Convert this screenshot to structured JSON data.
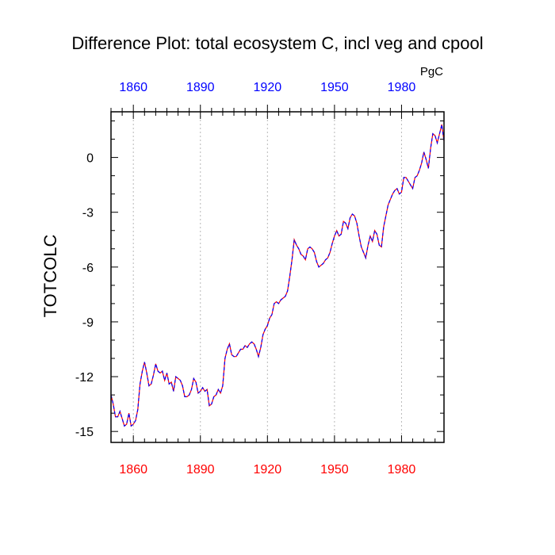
{
  "chart_data": {
    "type": "line",
    "title": "Difference Plot: total ecosystem C, incl veg and cpool",
    "units": "PgC",
    "ylabel": "TOTCOLC",
    "xlabel": "",
    "xlim": [
      1850,
      1999
    ],
    "ylim": [
      -15.6,
      2.5
    ],
    "x_ticks": [
      1860,
      1890,
      1920,
      1950,
      1980
    ],
    "y_ticks": [
      0,
      -3,
      -6,
      -9,
      -12,
      -15
    ],
    "grid": "vertical dotted lines at major x ticks",
    "top_tick_color": "#0000ff",
    "bottom_tick_color": "#ff0000",
    "series": [
      {
        "name": "",
        "color_a": "#ff0000",
        "color_b": "#0000ff",
        "style": "dashed",
        "x": [
          1850,
          1851,
          1852,
          1853,
          1854,
          1855,
          1856,
          1857,
          1858,
          1859,
          1860,
          1861,
          1862,
          1863,
          1864,
          1865,
          1866,
          1867,
          1868,
          1869,
          1870,
          1871,
          1872,
          1873,
          1874,
          1875,
          1876,
          1877,
          1878,
          1879,
          1880,
          1881,
          1882,
          1883,
          1884,
          1885,
          1886,
          1887,
          1888,
          1889,
          1890,
          1891,
          1892,
          1893,
          1894,
          1895,
          1896,
          1897,
          1898,
          1899,
          1900,
          1901,
          1902,
          1903,
          1904,
          1905,
          1906,
          1907,
          1908,
          1909,
          1910,
          1911,
          1912,
          1913,
          1914,
          1915,
          1916,
          1917,
          1918,
          1919,
          1920,
          1921,
          1922,
          1923,
          1924,
          1925,
          1926,
          1927,
          1928,
          1929,
          1930,
          1931,
          1932,
          1933,
          1934,
          1935,
          1936,
          1937,
          1938,
          1939,
          1940,
          1941,
          1942,
          1943,
          1944,
          1945,
          1946,
          1947,
          1948,
          1949,
          1950,
          1951,
          1952,
          1953,
          1954,
          1955,
          1956,
          1957,
          1958,
          1959,
          1960,
          1961,
          1962,
          1963,
          1964,
          1965,
          1966,
          1967,
          1968,
          1969,
          1970,
          1971,
          1972,
          1973,
          1974,
          1975,
          1976,
          1977,
          1978,
          1979,
          1980,
          1981,
          1982,
          1983,
          1984,
          1985,
          1986,
          1987,
          1988,
          1989,
          1990,
          1991,
          1992,
          1993,
          1994,
          1995,
          1996,
          1997,
          1998,
          1999
        ],
        "y": [
          -13.0,
          -13.5,
          -14.2,
          -14.2,
          -13.9,
          -14.3,
          -14.7,
          -14.6,
          -14.0,
          -14.7,
          -14.6,
          -14.4,
          -13.8,
          -12.4,
          -11.7,
          -11.2,
          -11.8,
          -12.5,
          -12.4,
          -11.9,
          -11.3,
          -11.7,
          -11.8,
          -11.7,
          -12.2,
          -11.8,
          -12.4,
          -12.3,
          -12.8,
          -12.0,
          -12.1,
          -12.2,
          -12.5,
          -13.1,
          -13.1,
          -13.0,
          -12.7,
          -12.1,
          -12.3,
          -12.9,
          -12.8,
          -12.6,
          -12.8,
          -12.7,
          -13.6,
          -13.5,
          -13.1,
          -13.0,
          -12.7,
          -12.9,
          -12.5,
          -11.0,
          -10.5,
          -10.2,
          -10.8,
          -10.9,
          -10.9,
          -10.7,
          -10.5,
          -10.5,
          -10.3,
          -10.4,
          -10.2,
          -10.1,
          -10.2,
          -10.5,
          -10.9,
          -10.4,
          -9.7,
          -9.4,
          -9.2,
          -8.8,
          -8.6,
          -8.0,
          -7.9,
          -8.0,
          -7.8,
          -7.7,
          -7.6,
          -7.3,
          -6.5,
          -5.6,
          -4.5,
          -4.8,
          -5.0,
          -5.3,
          -5.4,
          -5.6,
          -5.0,
          -4.9,
          -5.0,
          -5.2,
          -5.7,
          -6.0,
          -5.9,
          -5.8,
          -5.6,
          -5.5,
          -5.2,
          -4.7,
          -4.3,
          -4.0,
          -4.3,
          -4.2,
          -3.5,
          -3.6,
          -3.9,
          -3.3,
          -3.1,
          -3.2,
          -3.6,
          -4.3,
          -4.9,
          -5.2,
          -5.5,
          -4.8,
          -4.3,
          -4.6,
          -4.0,
          -4.2,
          -4.8,
          -4.9,
          -3.8,
          -3.2,
          -2.6,
          -2.3,
          -2.0,
          -1.8,
          -1.7,
          -2.0,
          -1.9,
          -1.1,
          -1.1,
          -1.3,
          -1.5,
          -1.7,
          -1.1,
          -1.0,
          -0.7,
          -0.3,
          0.3,
          -0.1,
          -0.6,
          0.5,
          1.3,
          1.2,
          0.8,
          1.3,
          1.8,
          0.9
        ]
      }
    ]
  }
}
